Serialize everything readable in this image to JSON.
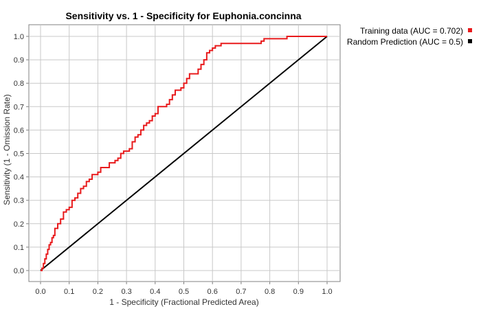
{
  "chart_data": {
    "type": "line",
    "title": "Sensitivity vs. 1 - Specificity for Euphonia.concinna",
    "xlabel": "1 - Specificity  (Fractional Predicted Area)",
    "ylabel": "Sensitivity  (1 - Omission Rate)",
    "xlim": [
      0,
      1
    ],
    "ylim": [
      0,
      1
    ],
    "x_ticks": [
      "0.0",
      "0.1",
      "0.2",
      "0.3",
      "0.4",
      "0.5",
      "0.6",
      "0.7",
      "0.8",
      "0.9",
      "1.0"
    ],
    "y_ticks": [
      "0.0",
      "0.1",
      "0.2",
      "0.3",
      "0.4",
      "0.5",
      "0.6",
      "0.7",
      "0.8",
      "0.9",
      "1.0"
    ],
    "grid": true,
    "legend_position": "top-right-outside",
    "series": [
      {
        "name": "Training data (AUC = 0.702)",
        "color": "#e8191b",
        "x": [
          0.0,
          0.005,
          0.01,
          0.015,
          0.02,
          0.025,
          0.03,
          0.035,
          0.04,
          0.045,
          0.05,
          0.06,
          0.07,
          0.08,
          0.09,
          0.1,
          0.11,
          0.12,
          0.13,
          0.14,
          0.15,
          0.16,
          0.17,
          0.18,
          0.2,
          0.21,
          0.22,
          0.24,
          0.26,
          0.27,
          0.28,
          0.29,
          0.31,
          0.32,
          0.33,
          0.34,
          0.35,
          0.36,
          0.37,
          0.38,
          0.39,
          0.4,
          0.41,
          0.42,
          0.44,
          0.45,
          0.46,
          0.47,
          0.49,
          0.5,
          0.51,
          0.52,
          0.53,
          0.55,
          0.56,
          0.57,
          0.58,
          0.59,
          0.6,
          0.61,
          0.63,
          0.65,
          0.66,
          0.7,
          0.75,
          0.77,
          0.78,
          0.82,
          0.85,
          0.86,
          0.9,
          0.95,
          1.0
        ],
        "y": [
          0.0,
          0.01,
          0.03,
          0.05,
          0.07,
          0.09,
          0.11,
          0.12,
          0.14,
          0.15,
          0.18,
          0.2,
          0.22,
          0.25,
          0.26,
          0.27,
          0.3,
          0.31,
          0.33,
          0.35,
          0.36,
          0.38,
          0.39,
          0.41,
          0.42,
          0.44,
          0.44,
          0.46,
          0.47,
          0.48,
          0.5,
          0.51,
          0.52,
          0.55,
          0.57,
          0.58,
          0.6,
          0.62,
          0.63,
          0.64,
          0.66,
          0.67,
          0.7,
          0.7,
          0.71,
          0.73,
          0.75,
          0.77,
          0.78,
          0.8,
          0.82,
          0.84,
          0.84,
          0.86,
          0.88,
          0.9,
          0.93,
          0.94,
          0.95,
          0.96,
          0.97,
          0.97,
          0.97,
          0.97,
          0.97,
          0.98,
          0.99,
          0.99,
          0.99,
          1.0,
          1.0,
          1.0,
          1.0
        ]
      },
      {
        "name": "Random Prediction (AUC = 0.5)",
        "color": "#000000",
        "x": [
          0.0,
          1.0
        ],
        "y": [
          0.0,
          1.0
        ]
      }
    ]
  }
}
